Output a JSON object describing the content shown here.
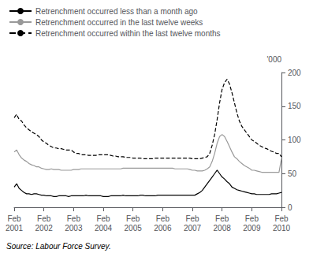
{
  "chart_data": {
    "type": "line",
    "ylabel": "'000",
    "annotation": "Source: Labour Force Survey.",
    "ylim": [
      0,
      200
    ],
    "yticks": [
      0,
      50,
      100,
      150,
      200
    ],
    "grid": false,
    "legend": "top left",
    "categories": [
      "Feb 2001",
      null,
      null,
      null,
      null,
      null,
      null,
      null,
      null,
      null,
      null,
      null,
      "Feb 2002",
      null,
      null,
      null,
      null,
      null,
      null,
      null,
      null,
      null,
      null,
      null,
      "Feb 2003",
      null,
      null,
      null,
      null,
      null,
      null,
      null,
      null,
      null,
      null,
      null,
      "Feb 2004",
      null,
      null,
      null,
      null,
      null,
      null,
      null,
      null,
      null,
      null,
      null,
      "Feb 2005",
      null,
      null,
      null,
      null,
      null,
      null,
      null,
      null,
      null,
      null,
      null,
      "Feb 2006",
      null,
      null,
      null,
      null,
      null,
      null,
      null,
      null,
      null,
      null,
      null,
      "Feb 2007",
      null,
      null,
      null,
      null,
      null,
      null,
      null,
      null,
      null,
      null,
      null,
      "Feb 2008",
      null,
      null,
      null,
      null,
      null,
      null,
      null,
      null,
      null,
      null,
      null,
      "Feb 2009",
      null,
      null,
      null,
      null,
      null,
      null,
      null,
      null,
      null,
      null,
      null,
      "Feb 2010"
    ],
    "series": [
      {
        "name": "Retrenchment occurred less than a month ago",
        "color": "#000000",
        "line_style": "solid",
        "values": [
          30,
          35,
          28,
          25,
          22,
          20,
          20,
          19,
          20,
          20,
          19,
          18,
          18,
          17,
          17,
          17,
          16,
          16,
          17,
          17,
          17,
          17,
          16,
          17,
          17,
          17,
          17,
          17,
          17,
          18,
          17,
          17,
          17,
          17,
          17,
          17,
          16,
          16,
          16,
          17,
          17,
          17,
          17,
          17,
          18,
          17,
          17,
          17,
          17,
          17,
          17,
          18,
          18,
          17,
          17,
          17,
          17,
          17,
          18,
          18,
          18,
          18,
          18,
          18,
          18,
          18,
          18,
          18,
          18,
          18,
          18,
          18,
          18,
          18,
          20,
          22,
          25,
          30,
          35,
          40,
          45,
          50,
          55,
          50,
          45,
          42,
          38,
          35,
          30,
          28,
          26,
          25,
          24,
          23,
          22,
          21,
          20,
          20,
          19,
          19,
          19,
          19,
          19,
          19,
          20,
          20,
          20,
          21,
          22
        ]
      },
      {
        "name": "Retrenchment occurred in the last twelve weeks",
        "color": "#999999",
        "line_style": "solid",
        "values": [
          82,
          85,
          78,
          73,
          70,
          68,
          65,
          63,
          62,
          60,
          60,
          58,
          57,
          56,
          56,
          57,
          56,
          56,
          56,
          55,
          55,
          55,
          55,
          55,
          56,
          56,
          56,
          57,
          57,
          57,
          57,
          57,
          57,
          57,
          57,
          57,
          57,
          57,
          57,
          57,
          57,
          57,
          57,
          57,
          58,
          58,
          58,
          58,
          58,
          58,
          58,
          58,
          58,
          58,
          58,
          58,
          58,
          58,
          58,
          58,
          58,
          58,
          58,
          58,
          58,
          57,
          57,
          57,
          57,
          57,
          57,
          56,
          55,
          55,
          54,
          54,
          54,
          55,
          57,
          60,
          68,
          80,
          95,
          105,
          108,
          105,
          98,
          90,
          82,
          75,
          72,
          68,
          65,
          62,
          60,
          58,
          55,
          55,
          54,
          53,
          52,
          52,
          52,
          52,
          52,
          52,
          52,
          52,
          72
        ]
      },
      {
        "name": "Retrenchment occurred within the last twelve months",
        "color": "#000000",
        "line_style": "dashed",
        "values": [
          133,
          138,
          130,
          128,
          122,
          118,
          115,
          112,
          110,
          108,
          105,
          100,
          97,
          95,
          92,
          90,
          88,
          88,
          87,
          87,
          86,
          85,
          85,
          85,
          82,
          80,
          80,
          78,
          78,
          78,
          77,
          77,
          77,
          77,
          78,
          78,
          78,
          78,
          78,
          77,
          76,
          76,
          75,
          75,
          75,
          74,
          74,
          74,
          73,
          73,
          73,
          73,
          72,
          72,
          72,
          72,
          72,
          73,
          73,
          73,
          73,
          73,
          73,
          73,
          73,
          73,
          73,
          73,
          73,
          73,
          73,
          73,
          72,
          72,
          72,
          72,
          73,
          74,
          75,
          80,
          92,
          108,
          130,
          155,
          175,
          185,
          190,
          183,
          170,
          155,
          140,
          128,
          120,
          115,
          110,
          105,
          100,
          98,
          95,
          92,
          90,
          88,
          87,
          85,
          83,
          82,
          80,
          80,
          75
        ]
      }
    ]
  }
}
